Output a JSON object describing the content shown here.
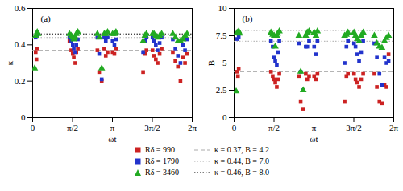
{
  "chart_data": [
    {
      "type": "scatter",
      "annotation": "(a)",
      "xlabel": "ωt",
      "ylabel": "κ",
      "grid": false,
      "xlim": [
        0,
        6.283185307
      ],
      "ylim": [
        0,
        0.6
      ],
      "xticks": [
        0,
        {
          "value": 1.5707963,
          "label": "π/2"
        },
        {
          "value": 3.1415927,
          "label": "π"
        },
        {
          "value": 4.712389,
          "label": "3π/2"
        },
        {
          "value": 6.2831853,
          "label": "2π"
        }
      ],
      "yticks": [
        0,
        0.2,
        0.4,
        0.6
      ],
      "series": [
        {
          "name": "κ = 0.37, B = 4.2",
          "type": "hline",
          "color": "#aaaaaa",
          "line_style": "dashed",
          "values": [
            0.37
          ]
        },
        {
          "name": "κ = 0.44, B = 7.0",
          "type": "hline",
          "color": "#aaaaaa",
          "line_style": "dotted",
          "values": [
            0.44
          ]
        },
        {
          "name": "κ = 0.46, B = 8.0",
          "type": "hline",
          "color": "black",
          "line_style": "dotted",
          "values": [
            0.46
          ]
        },
        {
          "name": "Rδ = 990",
          "type": "scatter",
          "color": "#cc2222",
          "marker": "square",
          "x": [
            0.12,
            0.15,
            0.18,
            1.45,
            1.52,
            1.58,
            1.62,
            1.68,
            1.72,
            1.78,
            2.55,
            2.62,
            2.72,
            2.82,
            2.88,
            2.95,
            3.15,
            3.22,
            3.28,
            4.35,
            4.42,
            4.48,
            4.72,
            4.78,
            4.85,
            4.92,
            5.0,
            5.08,
            5.52,
            5.62,
            5.72,
            5.82,
            5.92,
            6.0,
            6.08
          ],
          "values": [
            0.36,
            0.32,
            0.38,
            0.42,
            0.37,
            0.35,
            0.33,
            0.3,
            0.36,
            0.38,
            0.37,
            0.25,
            0.2,
            0.38,
            0.34,
            0.36,
            0.36,
            0.35,
            0.38,
            0.25,
            0.35,
            0.37,
            0.37,
            0.34,
            0.32,
            0.3,
            0.35,
            0.38,
            0.36,
            0.31,
            0.28,
            0.2,
            0.33,
            0.3,
            0.35
          ]
        },
        {
          "name": "Rδ = 1790",
          "type": "scatter",
          "color": "#2233cc",
          "marker": "square",
          "x": [
            0.12,
            0.18,
            1.45,
            1.52,
            1.58,
            1.62,
            1.68,
            1.72,
            1.78,
            2.55,
            2.62,
            2.72,
            2.82,
            2.88,
            2.95,
            3.15,
            3.22,
            3.28,
            4.35,
            4.42,
            4.48,
            4.72,
            4.78,
            4.85,
            4.92,
            5.0,
            5.08,
            5.52,
            5.62,
            5.72,
            5.82,
            5.92,
            6.0,
            6.08
          ],
          "values": [
            0.44,
            0.45,
            0.44,
            0.42,
            0.4,
            0.38,
            0.36,
            0.4,
            0.43,
            0.44,
            0.35,
            0.21,
            0.44,
            0.42,
            0.44,
            0.42,
            0.4,
            0.43,
            0.36,
            0.42,
            0.44,
            0.44,
            0.42,
            0.4,
            0.37,
            0.41,
            0.44,
            0.43,
            0.38,
            0.34,
            0.3,
            0.4,
            0.37,
            0.43
          ]
        },
        {
          "name": "Rδ = 3460",
          "type": "scatter",
          "color": "#22aa22",
          "marker": "triangle",
          "x": [
            0.08,
            0.12,
            0.18,
            0.22,
            1.45,
            1.52,
            1.58,
            1.62,
            1.68,
            1.72,
            1.78,
            2.55,
            2.62,
            2.72,
            2.82,
            2.88,
            2.95,
            3.15,
            3.22,
            3.28,
            4.35,
            4.42,
            4.48,
            4.72,
            4.78,
            4.85,
            4.92,
            5.0,
            5.08,
            5.52,
            5.62,
            5.72,
            5.82,
            5.92,
            6.0,
            6.08
          ],
          "values": [
            0.27,
            0.45,
            0.47,
            0.46,
            0.46,
            0.45,
            0.44,
            0.43,
            0.44,
            0.46,
            0.47,
            0.46,
            0.44,
            0.27,
            0.46,
            0.46,
            0.47,
            0.46,
            0.46,
            0.47,
            0.42,
            0.45,
            0.46,
            0.46,
            0.46,
            0.45,
            0.44,
            0.45,
            0.46,
            0.46,
            0.44,
            0.42,
            0.42,
            0.43,
            0.45,
            0.46
          ]
        }
      ]
    },
    {
      "type": "scatter",
      "annotation": "(b)",
      "xlabel": "ωt",
      "ylabel": "B",
      "grid": false,
      "xlim": [
        0,
        6.283185307
      ],
      "ylim": [
        0,
        10
      ],
      "xticks": [
        0,
        {
          "value": 1.5707963,
          "label": "π/2"
        },
        {
          "value": 3.1415927,
          "label": "π"
        },
        {
          "value": 4.712389,
          "label": "3π/2"
        },
        {
          "value": 6.2831853,
          "label": "2π"
        }
      ],
      "yticks": [
        0,
        2.5,
        5,
        7.5,
        10
      ],
      "series": [
        {
          "name": "κ = 0.37, B = 4.2",
          "type": "hline",
          "color": "#aaaaaa",
          "line_style": "dashed",
          "values": [
            4.2
          ]
        },
        {
          "name": "κ = 0.44, B = 7.0",
          "type": "hline",
          "color": "#aaaaaa",
          "line_style": "dotted",
          "values": [
            7.0
          ]
        },
        {
          "name": "κ = 0.46, B = 8.0",
          "type": "hline",
          "color": "black",
          "line_style": "dotted",
          "values": [
            8.0
          ]
        },
        {
          "name": "Rδ = 990",
          "type": "scatter",
          "color": "#cc2222",
          "marker": "square",
          "x": [
            0.12,
            0.15,
            0.18,
            1.45,
            1.52,
            1.58,
            1.62,
            1.68,
            1.72,
            1.78,
            2.55,
            2.62,
            2.72,
            2.82,
            2.88,
            2.95,
            3.15,
            3.22,
            3.28,
            4.35,
            4.42,
            4.48,
            4.72,
            4.78,
            4.85,
            4.92,
            5.0,
            5.08,
            5.52,
            5.62,
            5.72,
            5.82,
            5.92,
            6.0,
            6.08
          ],
          "values": [
            4.2,
            3.8,
            4.5,
            4.2,
            3.8,
            3.5,
            3.2,
            2.8,
            3.5,
            4.0,
            3.8,
            1.5,
            0.8,
            4.0,
            3.5,
            3.8,
            3.8,
            3.5,
            4.0,
            1.5,
            3.8,
            4.0,
            4.0,
            3.5,
            3.2,
            2.8,
            3.5,
            4.0,
            4.0,
            2.8,
            1.5,
            1.3,
            3.0,
            2.8,
            5.8
          ]
        },
        {
          "name": "Rδ = 1790",
          "type": "scatter",
          "color": "#2233cc",
          "marker": "square",
          "x": [
            0.12,
            0.18,
            1.45,
            1.52,
            1.58,
            1.62,
            1.68,
            1.72,
            1.78,
            2.55,
            2.62,
            2.72,
            2.82,
            2.88,
            2.95,
            3.15,
            3.22,
            3.28,
            4.35,
            4.42,
            4.48,
            4.72,
            4.78,
            4.85,
            4.92,
            5.0,
            5.08,
            5.52,
            5.62,
            5.72,
            5.82,
            5.92,
            6.0,
            6.08
          ],
          "values": [
            7.2,
            7.4,
            7.0,
            6.5,
            5.5,
            5.2,
            4.8,
            6.0,
            7.0,
            6.8,
            4.2,
            2.5,
            6.5,
            6.5,
            7.0,
            6.5,
            5.8,
            7.0,
            5.0,
            6.5,
            7.0,
            6.8,
            6.5,
            5.8,
            5.2,
            6.0,
            7.0,
            6.8,
            5.5,
            4.0,
            3.0,
            5.5,
            5.0,
            5.2
          ]
        },
        {
          "name": "Rδ = 3460",
          "type": "scatter",
          "color": "#22aa22",
          "marker": "triangle",
          "x": [
            0.08,
            0.12,
            0.18,
            0.22,
            1.45,
            1.52,
            1.58,
            1.62,
            1.68,
            1.72,
            1.78,
            2.55,
            2.62,
            2.72,
            2.82,
            2.88,
            2.95,
            3.15,
            3.22,
            3.28,
            4.35,
            4.42,
            4.48,
            4.72,
            4.78,
            4.85,
            4.92,
            5.0,
            5.08,
            5.52,
            5.62,
            5.72,
            5.82,
            5.92,
            6.0,
            6.08
          ],
          "values": [
            2.4,
            7.8,
            7.9,
            7.7,
            7.8,
            7.6,
            7.5,
            6.5,
            7.5,
            7.7,
            7.9,
            7.5,
            4.2,
            2.5,
            7.5,
            7.8,
            7.9,
            7.8,
            7.5,
            7.9,
            7.5,
            7.6,
            7.8,
            7.8,
            7.5,
            7.2,
            7.0,
            7.5,
            7.8,
            7.5,
            6.8,
            6.5,
            6.4,
            7.0,
            7.3,
            7.5
          ]
        }
      ]
    }
  ]
}
